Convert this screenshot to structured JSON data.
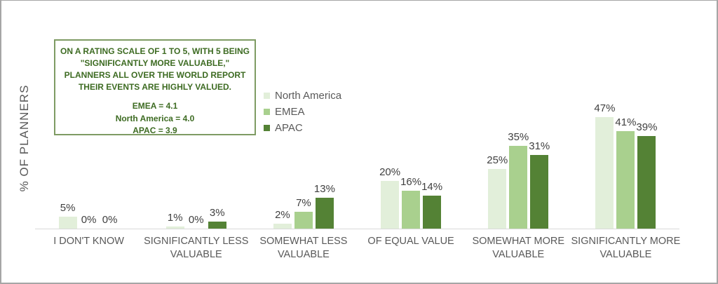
{
  "window": {
    "background": "#ffffff",
    "border_color": "#a6a6a6"
  },
  "annotation": {
    "title_lines": [
      "ON A RATING SCALE OF 1 TO 5, WITH 5 BEING",
      "\"SIGNIFICANTLY MORE VALUABLE,\"",
      "PLANNERS ALL OVER THE WORLD REPORT",
      "THEIR EVENTS ARE HIGHLY VALUED."
    ],
    "stats_lines": [
      "EMEA = 4.1",
      "North America = 4.0",
      "APAC = 3.9"
    ],
    "border_color": "#7e9b63",
    "text_color": "#3d6b22"
  },
  "chart_data": {
    "type": "bar",
    "title": "",
    "ylabel": "% OF PLANNERS",
    "xlabel": "",
    "ylim": [
      0,
      50
    ],
    "grid": false,
    "data_labels": true,
    "value_suffix": "%",
    "legend_position": "center-left",
    "categories": [
      "I DON'T KNOW",
      "SIGNIFICANTLY LESS VALUABLE",
      "SOMEWHAT LESS VALUABLE",
      "OF EQUAL VALUE",
      "SOMEWHAT MORE VALUABLE",
      "SIGNIFICANTLY MORE VALUABLE"
    ],
    "series": [
      {
        "name": "North America",
        "color": "#e2efda",
        "values": [
          5,
          1,
          2,
          20,
          25,
          47
        ]
      },
      {
        "name": "EMEA",
        "color": "#a9d08e",
        "values": [
          0,
          0,
          7,
          16,
          35,
          41
        ]
      },
      {
        "name": "APAC",
        "color": "#548235",
        "values": [
          0,
          3,
          13,
          14,
          31,
          39
        ]
      }
    ],
    "colors": {
      "axis_line": "#d9d9d9",
      "data_label": "#404040",
      "category_label": "#595959",
      "axis_title": "#595959"
    }
  }
}
